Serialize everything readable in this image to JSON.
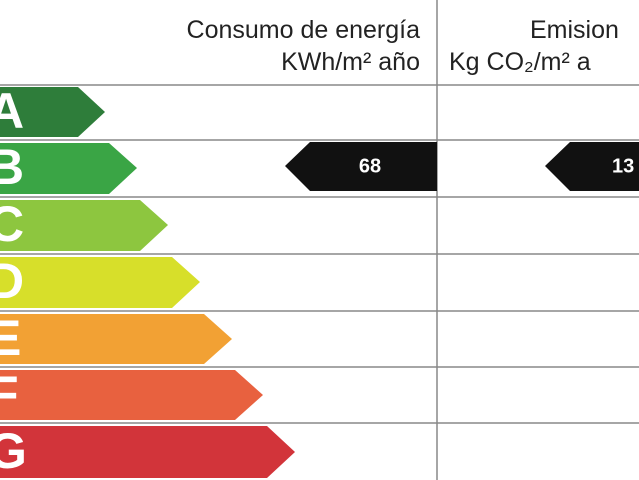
{
  "header": {
    "energy_title": "Consumo de energía",
    "energy_unit": "KWh/m² año",
    "emissions_title": "Emision",
    "emissions_unit": "Kg CO₂/m² a"
  },
  "grades": [
    "A",
    "B",
    "C",
    "D",
    "E",
    "F",
    "G"
  ],
  "energy_value": "68",
  "emissions_value": "13"
}
